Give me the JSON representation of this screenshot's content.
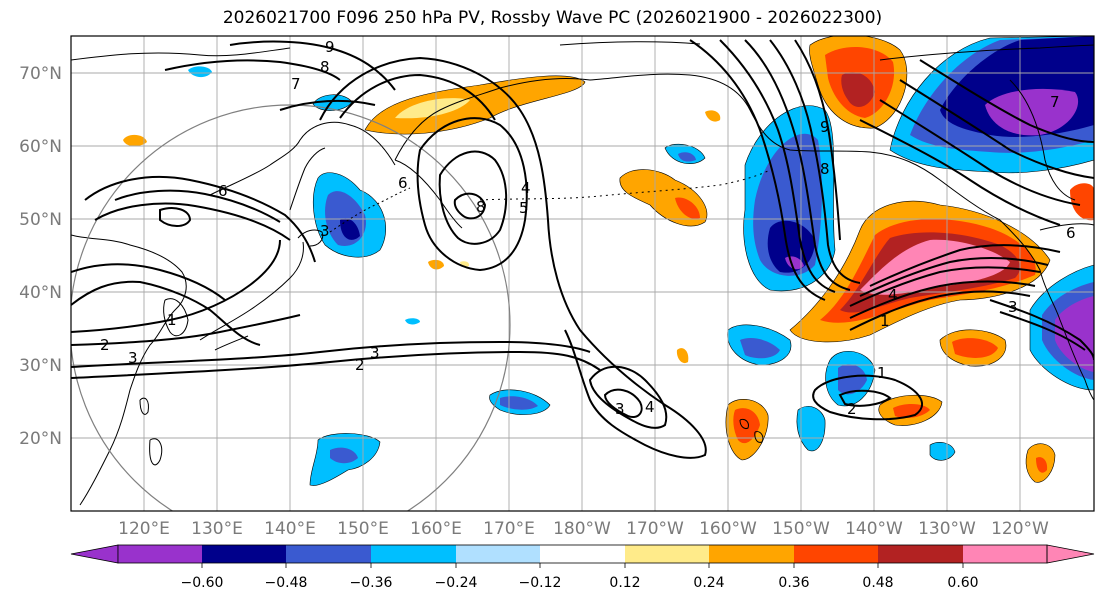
{
  "title": "2026021700 F096 250 hPa PV, Rossby Wave PC (2026021900 - 2026022300)",
  "map": {
    "projection": "PlateCarree",
    "lon_range": [
      110,
      250
    ],
    "lat_range": [
      10,
      75
    ],
    "lat_ticks": [
      "70°N",
      "60°N",
      "50°N",
      "40°N",
      "30°N",
      "20°N"
    ],
    "lon_ticks": [
      "120°E",
      "130°E",
      "140°E",
      "150°E",
      "160°E",
      "170°E",
      "180°W",
      "170°W",
      "160°W",
      "150°W",
      "140°W",
      "130°W",
      "120°W"
    ]
  },
  "colorbar": {
    "colors": [
      "#9932CC",
      "#00008B",
      "#3A5AD0",
      "#00BFFF",
      "#B0E0FF",
      "#FFFFFF",
      "#FFEB8A",
      "#FFA500",
      "#FF4500",
      "#B22222",
      "#FF85B5"
    ],
    "tick_labels": [
      "−0.60",
      "−0.48",
      "−0.36",
      "−0.24",
      "−0.12",
      "0.12",
      "0.24",
      "0.36",
      "0.48",
      "0.60"
    ]
  },
  "contour_labels": [
    "9",
    "8",
    "7",
    "6",
    "3",
    "6",
    "8",
    "4",
    "1",
    "2",
    "3",
    "2",
    "3",
    "5",
    "3",
    "4",
    "9",
    "8",
    "4",
    "1",
    "1",
    "2",
    "7",
    "6",
    "3"
  ],
  "colors": {
    "grid": "#a9a9a9",
    "contour": "#000000",
    "coast": "#000000",
    "circle": "#808080"
  }
}
